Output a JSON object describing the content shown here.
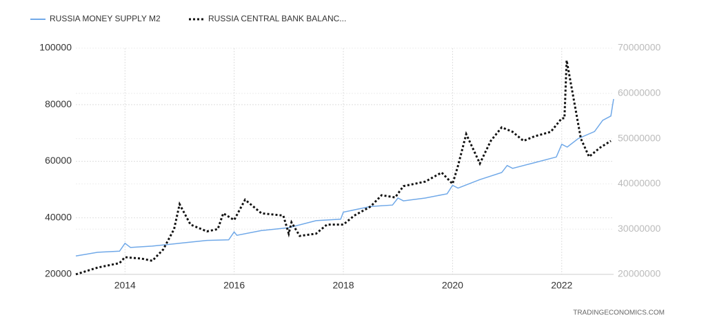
{
  "chart_data": {
    "type": "line",
    "source": "TRADINGECONOMICS.COM",
    "xlim": [
      2013.1,
      2022.95
    ],
    "xticks": [
      2014,
      2016,
      2018,
      2020,
      2022
    ],
    "ylim": [
      20000,
      100000
    ],
    "yticks": [
      20000,
      40000,
      60000,
      80000,
      100000
    ],
    "y2lim": [
      20000000,
      70000000
    ],
    "y2ticks": [
      20000000,
      30000000,
      40000000,
      50000000,
      60000000,
      70000000
    ],
    "grid": true,
    "series": [
      {
        "name": "RUSSIA MONEY SUPPLY M2",
        "color": "#6fa8e8",
        "style": "solid",
        "x": [
          2013.1,
          2013.5,
          2013.9,
          2014.0,
          2014.1,
          2014.5,
          2015.0,
          2015.5,
          2015.9,
          2016.0,
          2016.05,
          2016.5,
          2017.0,
          2017.5,
          2017.95,
          2018.0,
          2018.5,
          2018.9,
          2019.0,
          2019.1,
          2019.5,
          2019.9,
          2020.0,
          2020.1,
          2020.5,
          2020.9,
          2021.0,
          2021.1,
          2021.5,
          2021.9,
          2022.0,
          2022.1,
          2022.3,
          2022.6,
          2022.75,
          2022.9,
          2022.95
        ],
        "values": [
          26500,
          27800,
          28200,
          31000,
          29500,
          30000,
          31000,
          32000,
          32200,
          35000,
          33800,
          35500,
          36500,
          39000,
          39500,
          42000,
          44000,
          44500,
          47000,
          46000,
          47000,
          48500,
          51500,
          50500,
          53500,
          56000,
          58500,
          57500,
          59500,
          61500,
          66000,
          65000,
          68000,
          70500,
          74500,
          76000,
          82000
        ]
      },
      {
        "name": "RUSSIA CENTRAL BANK BALANC...",
        "color": "#111111",
        "style": "dotted",
        "axis": "y2",
        "x": [
          2013.1,
          2013.5,
          2013.9,
          2014.0,
          2014.3,
          2014.5,
          2014.7,
          2014.9,
          2015.0,
          2015.2,
          2015.5,
          2015.7,
          2015.8,
          2016.0,
          2016.2,
          2016.5,
          2016.9,
          2017.0,
          2017.05,
          2017.2,
          2017.5,
          2017.7,
          2018.0,
          2018.2,
          2018.5,
          2018.7,
          2018.95,
          2019.1,
          2019.5,
          2019.8,
          2020.0,
          2020.1,
          2020.25,
          2020.5,
          2020.7,
          2020.9,
          2021.1,
          2021.3,
          2021.5,
          2021.8,
          2022.0,
          2022.05,
          2022.09,
          2022.35,
          2022.5,
          2022.7,
          2022.9
        ],
        "values": [
          20000000,
          21500000,
          22500000,
          23800000,
          23500000,
          23000000,
          25500000,
          30000000,
          35500000,
          31000000,
          29500000,
          30000000,
          33500000,
          32000000,
          36500000,
          33500000,
          33000000,
          29000000,
          31500000,
          28500000,
          29000000,
          31000000,
          31000000,
          33000000,
          35000000,
          37500000,
          37000000,
          39500000,
          40500000,
          42500000,
          40000000,
          44000000,
          51000000,
          44500000,
          49500000,
          52500000,
          51500000,
          49500000,
          50500000,
          51500000,
          54500000,
          54500000,
          67300000,
          50000000,
          46000000,
          48000000,
          49500000
        ]
      }
    ]
  }
}
